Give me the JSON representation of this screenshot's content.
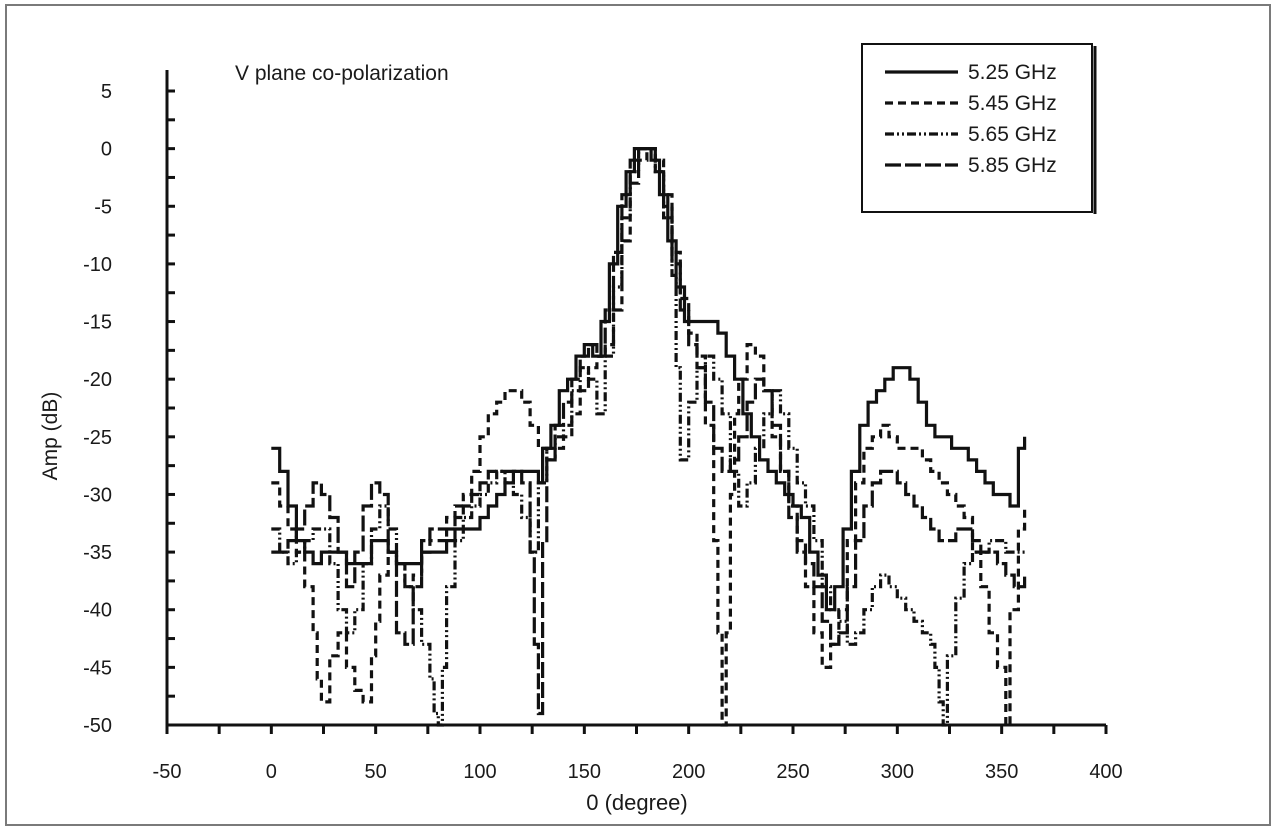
{
  "chart_data": {
    "type": "line",
    "title": "V plane co-polarization",
    "xlabel": "0 (degree)",
    "ylabel": "Amp (dB)",
    "xlim": [
      -50,
      400
    ],
    "ylim": [
      -50,
      5
    ],
    "xticks": [
      "-50",
      "0",
      "50",
      "100",
      "150",
      "200",
      "250",
      "300",
      "350",
      "400"
    ],
    "yticks": [
      "5",
      "0",
      "-5",
      "-10",
      "-15",
      "-20",
      "-25",
      "-30",
      "-35",
      "-40",
      "-45",
      "-50"
    ],
    "grid": false,
    "legend_position": "top-right",
    "line_color": "#111111",
    "series": [
      {
        "name": "5.25 GHz",
        "dash": "solid",
        "x": [
          0,
          4,
          8,
          12,
          16,
          20,
          24,
          28,
          32,
          36,
          40,
          44,
          48,
          52,
          56,
          60,
          64,
          68,
          72,
          76,
          80,
          84,
          88,
          92,
          96,
          100,
          104,
          108,
          112,
          116,
          120,
          124,
          128,
          130,
          134,
          138,
          142,
          146,
          150,
          154,
          158,
          162,
          166,
          170,
          174,
          178,
          182,
          186,
          190,
          194,
          198,
          202,
          206,
          210,
          214,
          218,
          222,
          226,
          230,
          234,
          238,
          242,
          246,
          250,
          254,
          258,
          262,
          266,
          270,
          274,
          278,
          282,
          286,
          290,
          294,
          298,
          302,
          306,
          310,
          314,
          318,
          322,
          326,
          330,
          334,
          338,
          342,
          346,
          350,
          354,
          358,
          361
        ],
        "y": [
          -26,
          -28,
          -31,
          -34,
          -35,
          -36,
          -35,
          -35,
          -35,
          -36,
          -36,
          -36,
          -34,
          -34,
          -35,
          -36,
          -36,
          -36,
          -35,
          -35,
          -35,
          -34,
          -33,
          -33,
          -33,
          -32,
          -31,
          -30,
          -29,
          -28,
          -28,
          -28,
          -29,
          -26,
          -24,
          -21,
          -20,
          -18,
          -17,
          -18,
          -15,
          -10,
          -5,
          -2,
          0,
          0,
          -1,
          -4,
          -8,
          -12,
          -15,
          -15,
          -15,
          -15,
          -16,
          -18,
          -20,
          -23,
          -25,
          -27,
          -28,
          -29,
          -30,
          -31,
          -32,
          -35,
          -37,
          -40,
          -38,
          -33,
          -28,
          -24,
          -22,
          -21,
          -20,
          -19,
          -19,
          -20,
          -22,
          -24,
          -25,
          -25,
          -26,
          -26,
          -27,
          -28,
          -29,
          -30,
          -30,
          -31,
          -26,
          -25
        ]
      },
      {
        "name": "5.45 GHz",
        "dash": "8,5",
        "x": [
          0,
          4,
          8,
          12,
          16,
          20,
          22,
          24,
          28,
          32,
          36,
          40,
          44,
          48,
          50,
          52,
          56,
          60,
          64,
          68,
          72,
          76,
          80,
          84,
          88,
          92,
          96,
          100,
          104,
          108,
          112,
          116,
          120,
          124,
          128,
          132,
          136,
          140,
          144,
          148,
          152,
          156,
          160,
          164,
          168,
          172,
          176,
          180,
          184,
          188,
          192,
          196,
          200,
          204,
          208,
          212,
          214,
          216,
          218,
          220,
          222,
          224,
          228,
          232,
          236,
          240,
          244,
          248,
          252,
          256,
          260,
          264,
          268,
          272,
          276,
          280,
          284,
          288,
          292,
          296,
          300,
          304,
          308,
          312,
          316,
          320,
          324,
          328,
          332,
          336,
          340,
          344,
          348,
          352,
          354,
          358,
          361
        ],
        "y": [
          -29,
          -31,
          -33,
          -35,
          -38,
          -42,
          -46,
          -48,
          -44,
          -42,
          -45,
          -47,
          -48,
          -44,
          -41,
          -37,
          -35,
          -36,
          -38,
          -37,
          -35,
          -34,
          -34,
          -32,
          -31,
          -30,
          -28,
          -25,
          -23,
          -22,
          -21,
          -21,
          -22,
          -24,
          -26,
          -27,
          -26,
          -25,
          -23,
          -21,
          -19,
          -18,
          -17,
          -14,
          -8,
          -3,
          -1,
          0,
          -1,
          -4,
          -9,
          -13,
          -16,
          -18,
          -24,
          -34,
          -42,
          -50,
          -42,
          -30,
          -23,
          -20,
          -17,
          -18,
          -21,
          -25,
          -28,
          -31,
          -34,
          -38,
          -42,
          -45,
          -43,
          -40,
          -34,
          -29,
          -26,
          -25,
          -24,
          -25,
          -26,
          -26,
          -26,
          -27,
          -28,
          -29,
          -30,
          -31,
          -32,
          -35,
          -38,
          -42,
          -45,
          -50,
          -40,
          -33,
          -31
        ]
      },
      {
        "name": "5.65 GHz",
        "dash": "9,3,2,3,2,3",
        "x": [
          0,
          4,
          8,
          12,
          16,
          20,
          24,
          28,
          32,
          36,
          40,
          44,
          48,
          52,
          56,
          60,
          64,
          68,
          72,
          76,
          78,
          80,
          82,
          84,
          88,
          92,
          96,
          100,
          104,
          108,
          112,
          116,
          120,
          124,
          128,
          132,
          136,
          140,
          144,
          148,
          152,
          156,
          160,
          164,
          168,
          172,
          176,
          180,
          184,
          188,
          192,
          194,
          196,
          200,
          204,
          208,
          212,
          216,
          220,
          224,
          228,
          232,
          236,
          240,
          244,
          248,
          252,
          256,
          260,
          264,
          268,
          272,
          276,
          280,
          284,
          288,
          292,
          296,
          300,
          304,
          308,
          312,
          316,
          318,
          320,
          322,
          324,
          328,
          332,
          336,
          340,
          344,
          348,
          352,
          356,
          361
        ],
        "y": [
          -33,
          -35,
          -36,
          -35,
          -34,
          -33,
          -33,
          -36,
          -40,
          -42,
          -40,
          -36,
          -33,
          -31,
          -33,
          -36,
          -38,
          -40,
          -43,
          -46,
          -49,
          -50,
          -45,
          -38,
          -34,
          -32,
          -31,
          -30,
          -29,
          -28,
          -29,
          -30,
          -32,
          -35,
          -29,
          -26,
          -25,
          -24,
          -21,
          -19,
          -20,
          -23,
          -18,
          -12,
          -6,
          -2,
          0,
          0,
          -2,
          -6,
          -11,
          -19,
          -27,
          -22,
          -19,
          -18,
          -20,
          -23,
          -28,
          -31,
          -29,
          -26,
          -23,
          -21,
          -23,
          -26,
          -29,
          -31,
          -34,
          -38,
          -40,
          -41,
          -43,
          -42,
          -40,
          -38,
          -37,
          -38,
          -39,
          -40,
          -41,
          -42,
          -43,
          -45,
          -48,
          -50,
          -44,
          -39,
          -36,
          -35,
          -35,
          -34,
          -34,
          -35,
          -35,
          -35
        ]
      },
      {
        "name": "5.85 GHz",
        "dash": "16,4",
        "x": [
          0,
          4,
          8,
          12,
          16,
          20,
          24,
          28,
          32,
          36,
          40,
          44,
          48,
          52,
          56,
          60,
          64,
          68,
          72,
          76,
          80,
          84,
          88,
          92,
          96,
          100,
          104,
          108,
          112,
          116,
          120,
          124,
          126,
          128,
          130,
          132,
          136,
          140,
          144,
          148,
          152,
          156,
          160,
          164,
          168,
          172,
          176,
          180,
          184,
          188,
          192,
          196,
          200,
          204,
          208,
          212,
          216,
          220,
          224,
          228,
          232,
          236,
          240,
          244,
          248,
          252,
          256,
          260,
          264,
          268,
          272,
          276,
          280,
          284,
          288,
          292,
          296,
          300,
          304,
          308,
          312,
          316,
          320,
          324,
          328,
          332,
          336,
          340,
          344,
          348,
          352,
          356,
          361
        ],
        "y": [
          -35,
          -35,
          -34,
          -33,
          -31,
          -29,
          -30,
          -32,
          -35,
          -38,
          -35,
          -31,
          -29,
          -30,
          -35,
          -42,
          -43,
          -38,
          -34,
          -33,
          -33,
          -33,
          -32,
          -31,
          -30,
          -29,
          -28,
          -28,
          -28,
          -28,
          -29,
          -35,
          -43,
          -49,
          -34,
          -27,
          -24,
          -22,
          -20,
          -18,
          -17,
          -18,
          -14,
          -9,
          -4,
          -1,
          0,
          0,
          -2,
          -5,
          -10,
          -14,
          -17,
          -19,
          -22,
          -26,
          -28,
          -27,
          -25,
          -22,
          -20,
          -21,
          -24,
          -28,
          -32,
          -35,
          -36,
          -38,
          -41,
          -43,
          -42,
          -38,
          -34,
          -31,
          -29,
          -28,
          -28,
          -29,
          -30,
          -31,
          -32,
          -33,
          -34,
          -34,
          -33,
          -33,
          -34,
          -35,
          -35,
          -36,
          -37,
          -38,
          -37
        ]
      }
    ]
  }
}
